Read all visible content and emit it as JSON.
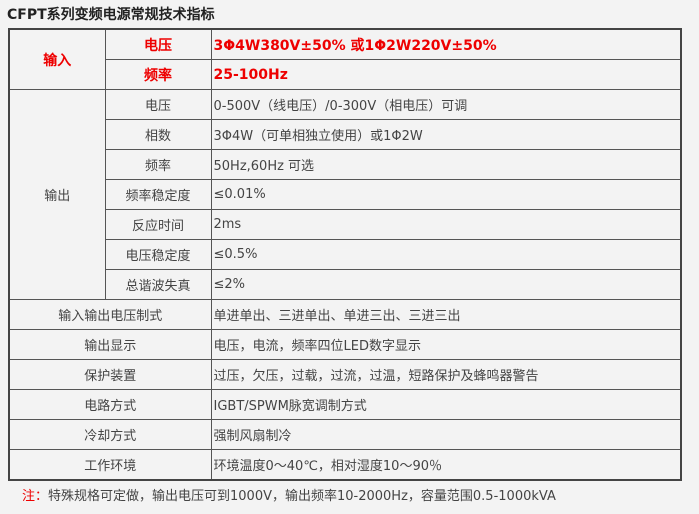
{
  "title": "CFPT系列变频电源常规技术指标",
  "input": {
    "label": "输入",
    "rows": [
      {
        "name": "电压",
        "value": "3Φ4W380V±50% 或1Φ2W220V±50%"
      },
      {
        "name": "频率",
        "value": "25-100Hz"
      }
    ]
  },
  "output": {
    "label": "输出",
    "rows": [
      {
        "name": "电压",
        "value": "0-500V（线电压）/0-300V（相电压）可调"
      },
      {
        "name": "相数",
        "value": "3Φ4W（可单相独立使用）或1Φ2W"
      },
      {
        "name": "频率",
        "value": "50Hz,60Hz 可选"
      },
      {
        "name": "频率稳定度",
        "value": "≤0.01%"
      },
      {
        "name": "反应时间",
        "value": "2ms"
      },
      {
        "name": "电压稳定度",
        "value": "≤0.5%"
      },
      {
        "name": "总谐波失真",
        "value": "≤2%"
      }
    ]
  },
  "other": [
    {
      "name": "输入输出电压制式",
      "value": "单进单出、三进单出、单进三出、三进三出"
    },
    {
      "name": "输出显示",
      "value": "电压，电流，频率四位LED数字显示"
    },
    {
      "name": "保护装置",
      "value": "过压，欠压，过载，过流，过温，短路保护及蜂鸣器警告"
    },
    {
      "name": "电路方式",
      "value": "IGBT/SPWM脉宽调制方式"
    },
    {
      "name": "冷却方式",
      "value": "强制风扇制冷"
    },
    {
      "name": "工作环境",
      "value": "环境温度0～40℃，相对湿度10～90％"
    }
  ],
  "note": {
    "prefix": "注：",
    "text": "特殊规格可定做，输出电压可到1000V，输出频率10-2000Hz，容量范围0.5-1000kVA"
  }
}
